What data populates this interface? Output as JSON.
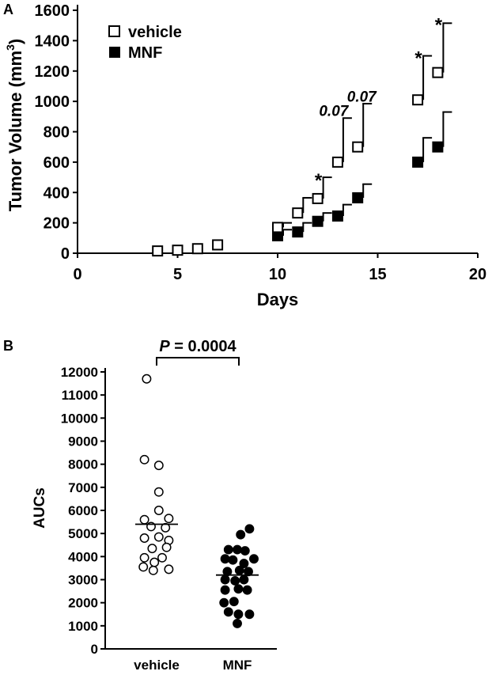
{
  "chart_data": [
    {
      "panel": "A",
      "type": "scatter",
      "xlabel": "Days",
      "ylabel": "Tumor Volume (mm",
      "ylabel_sup": "3",
      "ylabel_close": ")",
      "xlim": [
        0,
        20
      ],
      "ylim": [
        0,
        1600
      ],
      "xticks": [
        0,
        5,
        10,
        15,
        20
      ],
      "yticks": [
        0,
        200,
        400,
        600,
        800,
        1000,
        1200,
        1400,
        1600
      ],
      "legend_position": "top-left",
      "series": [
        {
          "name": "vehicle",
          "marker": "open-square",
          "points": [
            {
              "x": 4,
              "y": 15
            },
            {
              "x": 5,
              "y": 20
            },
            {
              "x": 6,
              "y": 30
            },
            {
              "x": 7,
              "y": 55
            },
            {
              "x": 10,
              "y": 170
            },
            {
              "x": 11,
              "y": 265
            },
            {
              "x": 12,
              "y": 360,
              "err": 140
            },
            {
              "x": 13,
              "y": 600,
              "err": 290
            },
            {
              "x": 14,
              "y": 700,
              "err": 285
            },
            {
              "x": 17,
              "y": 1010,
              "err": 290
            },
            {
              "x": 18,
              "y": 1190,
              "err": 325
            }
          ],
          "err_extra": [
            {
              "x": 10,
              "err": 30
            },
            {
              "x": 11,
              "err": 100
            }
          ]
        },
        {
          "name": "MNF",
          "marker": "filled-square",
          "points": [
            {
              "x": 10,
              "y": 115,
              "err": 40
            },
            {
              "x": 11,
              "y": 140,
              "err": 60
            },
            {
              "x": 12,
              "y": 210,
              "err": 55
            },
            {
              "x": 13,
              "y": 245,
              "err": 75
            },
            {
              "x": 14,
              "y": 365,
              "err": 90
            },
            {
              "x": 17,
              "y": 600,
              "err": 160
            },
            {
              "x": 18,
              "y": 700,
              "err": 230
            }
          ]
        }
      ],
      "annotations": [
        {
          "text": "*",
          "x": 12,
          "y": 510,
          "kind": "star"
        },
        {
          "text": "0.07",
          "x": 12.8,
          "y": 935,
          "kind": "italic"
        },
        {
          "text": "0.07",
          "x": 14.2,
          "y": 1030,
          "kind": "italic"
        },
        {
          "text": "*",
          "x": 17,
          "y": 1315,
          "kind": "star"
        },
        {
          "text": "*",
          "x": 18,
          "y": 1535,
          "kind": "star"
        }
      ]
    },
    {
      "panel": "B",
      "type": "scatter",
      "ylabel": "AUCs",
      "categories": [
        "vehicle",
        "MNF"
      ],
      "ylim": [
        0,
        12000
      ],
      "yticks": [
        0,
        1000,
        2000,
        3000,
        4000,
        5000,
        6000,
        7000,
        8000,
        9000,
        10000,
        11000,
        12000
      ],
      "significance": {
        "p_label": "P",
        "p_value": " = 0.0004"
      },
      "series": [
        {
          "name": "vehicle",
          "marker": "open-circle",
          "median": 5400,
          "points": [
            {
              "dx": -0.45,
              "y": 11700
            },
            {
              "dx": -0.55,
              "y": 8200
            },
            {
              "dx": 0.1,
              "y": 7950
            },
            {
              "dx": 0.1,
              "y": 6800
            },
            {
              "dx": 0.1,
              "y": 6000
            },
            {
              "dx": -0.55,
              "y": 5600
            },
            {
              "dx": 0.55,
              "y": 5650
            },
            {
              "dx": -0.25,
              "y": 5300
            },
            {
              "dx": 0.4,
              "y": 5250
            },
            {
              "dx": -0.55,
              "y": 4800
            },
            {
              "dx": 0.1,
              "y": 4850
            },
            {
              "dx": 0.55,
              "y": 4700
            },
            {
              "dx": -0.2,
              "y": 4350
            },
            {
              "dx": 0.45,
              "y": 4400
            },
            {
              "dx": -0.55,
              "y": 3950
            },
            {
              "dx": -0.1,
              "y": 3750
            },
            {
              "dx": 0.25,
              "y": 3950
            },
            {
              "dx": -0.6,
              "y": 3550
            },
            {
              "dx": -0.15,
              "y": 3400
            },
            {
              "dx": 0.55,
              "y": 3450
            }
          ]
        },
        {
          "name": "MNF",
          "marker": "filled-circle",
          "median": 3200,
          "points": [
            {
              "dx": 0.55,
              "y": 5200
            },
            {
              "dx": 0.15,
              "y": 4950
            },
            {
              "dx": -0.4,
              "y": 4300
            },
            {
              "dx": 0.0,
              "y": 4300
            },
            {
              "dx": 0.35,
              "y": 4250
            },
            {
              "dx": -0.55,
              "y": 3900
            },
            {
              "dx": 0.75,
              "y": 3900
            },
            {
              "dx": -0.2,
              "y": 3850
            },
            {
              "dx": 0.3,
              "y": 3700
            },
            {
              "dx": -0.45,
              "y": 3350
            },
            {
              "dx": 0.1,
              "y": 3400
            },
            {
              "dx": 0.5,
              "y": 3350
            },
            {
              "dx": -0.55,
              "y": 3000
            },
            {
              "dx": -0.1,
              "y": 2950
            },
            {
              "dx": 0.3,
              "y": 3000
            },
            {
              "dx": -0.55,
              "y": 2550
            },
            {
              "dx": 0.05,
              "y": 2600
            },
            {
              "dx": 0.45,
              "y": 2550
            },
            {
              "dx": -0.6,
              "y": 2000
            },
            {
              "dx": -0.15,
              "y": 2050
            },
            {
              "dx": -0.4,
              "y": 1600
            },
            {
              "dx": 0.05,
              "y": 1500
            },
            {
              "dx": 0.55,
              "y": 1500
            },
            {
              "dx": 0.0,
              "y": 1100
            }
          ]
        }
      ]
    }
  ],
  "panel_labels": {
    "a": "A",
    "b": "B"
  }
}
